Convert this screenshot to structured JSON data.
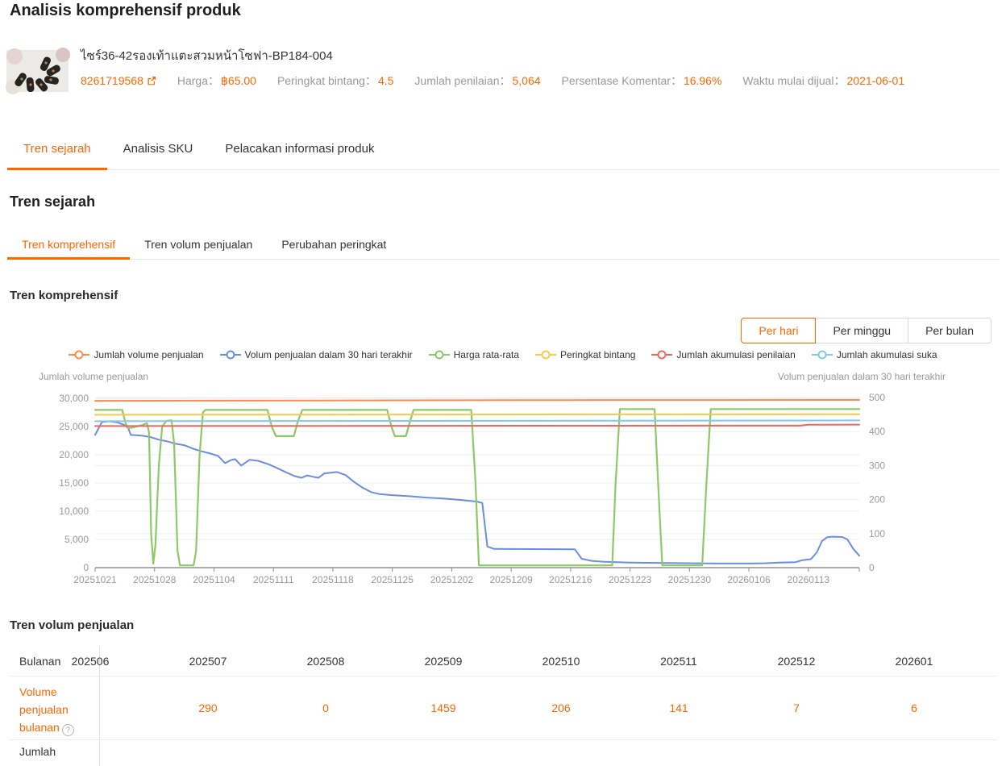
{
  "page_title": "Analisis komprehensif produk",
  "accent_color": "#ff6600",
  "product": {
    "name": "ไซร์36-42รองเท้าแตะสวมหน้าโซฟา-BP184-004",
    "id": "8261719568",
    "fields": [
      {
        "label": "Harga：",
        "value": "฿65.00"
      },
      {
        "label": "Peringkat bintang：",
        "value": "4.5"
      },
      {
        "label": "Jumlah penilaian：",
        "value": "5,064"
      },
      {
        "label": "Persentase Komentar：",
        "value": "16.96%"
      },
      {
        "label": "Waktu mulai dijual：",
        "value": "2021-06-01"
      }
    ]
  },
  "main_tabs": {
    "active_index": 0,
    "items": [
      "Tren sejarah",
      "Analisis SKU",
      "Pelacakan informasi produk"
    ]
  },
  "history_section_title": "Tren sejarah",
  "sub_tabs": {
    "active_index": 0,
    "items": [
      "Tren komprehensif",
      "Tren volum penjualan",
      "Perubahan peringkat"
    ]
  },
  "comprehensive_trend": {
    "title": "Tren komprehensif",
    "period_buttons": {
      "active_index": 0,
      "items": [
        "Per hari",
        "Per minggu",
        "Per bulan"
      ]
    }
  },
  "chart_data": {
    "type": "line",
    "grid": true,
    "legend_position": "top-center",
    "x_axis": {
      "days_total": 90,
      "tick_interval_days": 7,
      "tick_labels": [
        "20251021",
        "20251028",
        "20251104",
        "20251111",
        "20251118",
        "20251125",
        "20251202",
        "20251209",
        "20251216",
        "20251223",
        "20251230",
        "20260106",
        "20260113"
      ]
    },
    "left_axis": {
      "title": "Jumlah volume penjualan",
      "min": 0,
      "max": 30000,
      "tick_step": 5000,
      "tick_labels": [
        "0",
        "5,000",
        "10,000",
        "15,000",
        "20,000",
        "25,000",
        "30,000"
      ]
    },
    "right_axis": {
      "title": "Volum penjualan dalam 30 hari terakhir",
      "min": 0,
      "max": 500,
      "tick_step": 100,
      "tick_labels": [
        "0",
        "100",
        "200",
        "300",
        "400",
        "500"
      ]
    },
    "series": [
      {
        "name": "Jumlah volume penjualan",
        "color": "#fa8c50",
        "axis": "left",
        "width": 2,
        "points_day_value": [
          [
            0,
            29560
          ],
          [
            25,
            29620
          ],
          [
            55,
            29680
          ],
          [
            90,
            29720
          ]
        ]
      },
      {
        "name": "Volum penjualan dalam 30 hari terakhir",
        "color": "#6b8de3",
        "axis": "right",
        "width": 2,
        "points_day_value": [
          [
            0,
            390
          ],
          [
            0.8,
            428
          ],
          [
            1.6,
            430
          ],
          [
            2.6,
            427
          ],
          [
            3.4,
            420
          ],
          [
            3.9,
            410
          ],
          [
            4.2,
            390
          ],
          [
            5.5,
            388
          ],
          [
            6.5,
            384
          ],
          [
            7.5,
            376
          ],
          [
            8.5,
            371
          ],
          [
            9.5,
            364
          ],
          [
            10.5,
            360
          ],
          [
            11.5,
            350
          ],
          [
            12.5,
            342
          ],
          [
            13.5,
            336
          ],
          [
            14.5,
            328
          ],
          [
            15.3,
            307
          ],
          [
            16,
            316
          ],
          [
            16.5,
            319
          ],
          [
            17.2,
            300
          ],
          [
            18.2,
            317
          ],
          [
            19.2,
            314
          ],
          [
            20.5,
            303
          ],
          [
            21.5,
            292
          ],
          [
            22.5,
            280
          ],
          [
            23.5,
            269
          ],
          [
            24.3,
            264
          ],
          [
            25,
            271
          ],
          [
            25.7,
            267
          ],
          [
            26.3,
            264
          ],
          [
            27,
            277
          ],
          [
            28.5,
            281
          ],
          [
            29.5,
            272
          ],
          [
            30.5,
            252
          ],
          [
            31.5,
            235
          ],
          [
            32.5,
            222
          ],
          [
            33.5,
            216
          ],
          [
            35,
            213
          ],
          [
            37,
            210
          ],
          [
            39,
            206
          ],
          [
            41,
            203
          ],
          [
            43,
            199
          ],
          [
            45,
            194
          ],
          [
            45.6,
            190
          ],
          [
            46.2,
            62
          ],
          [
            47,
            55
          ],
          [
            56.5,
            54
          ],
          [
            57.3,
            26
          ],
          [
            58.5,
            20
          ],
          [
            60,
            17
          ],
          [
            63,
            15
          ],
          [
            66,
            14
          ],
          [
            70,
            13
          ],
          [
            74,
            12
          ],
          [
            77,
            12
          ],
          [
            79,
            13
          ],
          [
            80.5,
            15
          ],
          [
            82.5,
            16
          ],
          [
            83.3,
            22
          ],
          [
            84.3,
            25
          ],
          [
            85,
            45
          ],
          [
            85.6,
            78
          ],
          [
            86.2,
            89
          ],
          [
            86.8,
            91
          ],
          [
            88,
            90
          ],
          [
            88.6,
            83
          ],
          [
            89.3,
            55
          ],
          [
            90,
            35
          ]
        ]
      },
      {
        "name": "Harga rata-rata",
        "color": "#8fc866",
        "axis": "left",
        "width": 2.2,
        "points_day_value": [
          [
            0,
            27950
          ],
          [
            3.2,
            27950
          ],
          [
            3.6,
            25500
          ],
          [
            3.9,
            24700
          ],
          [
            4.6,
            24900
          ],
          [
            5.6,
            25300
          ],
          [
            6.1,
            25600
          ],
          [
            6.35,
            24000
          ],
          [
            6.6,
            6000
          ],
          [
            6.85,
            700
          ],
          [
            7.1,
            4000
          ],
          [
            7.5,
            18000
          ],
          [
            7.9,
            25000
          ],
          [
            8.4,
            26000
          ],
          [
            9,
            26100
          ],
          [
            9.3,
            22000
          ],
          [
            9.7,
            3000
          ],
          [
            10,
            400
          ],
          [
            11.6,
            400
          ],
          [
            11.9,
            3000
          ],
          [
            12.3,
            20000
          ],
          [
            12.7,
            27500
          ],
          [
            13,
            27950
          ],
          [
            20.3,
            27950
          ],
          [
            20.8,
            25000
          ],
          [
            21.3,
            23300
          ],
          [
            23.4,
            23300
          ],
          [
            23.9,
            26000
          ],
          [
            24.4,
            27950
          ],
          [
            34.4,
            27950
          ],
          [
            34.9,
            25000
          ],
          [
            35.3,
            23300
          ],
          [
            36.6,
            23300
          ],
          [
            37.1,
            26000
          ],
          [
            37.5,
            27950
          ],
          [
            44.3,
            27950
          ],
          [
            44.8,
            15000
          ],
          [
            45.2,
            400
          ],
          [
            60.9,
            400
          ],
          [
            61.3,
            15000
          ],
          [
            61.8,
            28100
          ],
          [
            65.9,
            28100
          ],
          [
            66.3,
            15000
          ],
          [
            66.8,
            400
          ],
          [
            71.5,
            400
          ],
          [
            72,
            15000
          ],
          [
            72.5,
            28100
          ],
          [
            90,
            28100
          ]
        ]
      },
      {
        "name": "Peringkat bintang",
        "color": "#f6c94e",
        "axis": "left",
        "width": 2,
        "points_day_value": [
          [
            0,
            27080
          ],
          [
            90,
            27180
          ]
        ]
      },
      {
        "name": "Jumlah akumulasi penilaian",
        "color": "#e96862",
        "axis": "left",
        "width": 2,
        "points_day_value": [
          [
            0,
            25080
          ],
          [
            70,
            25160
          ],
          [
            83,
            25160
          ],
          [
            84,
            25320
          ],
          [
            90,
            25340
          ]
        ]
      },
      {
        "name": "Jumlah akumulasi suka",
        "color": "#85c8e8",
        "axis": "left",
        "width": 2,
        "points_day_value": [
          [
            0,
            25940
          ],
          [
            90,
            26080
          ]
        ]
      }
    ]
  },
  "sales_table": {
    "title": "Tren volum penjualan",
    "corner_label": "Bulanan",
    "months": [
      "202506",
      "202507",
      "202508",
      "202509",
      "202510",
      "202511",
      "202512",
      "202601"
    ],
    "rows": [
      {
        "label": "Volume penjualan bulanan",
        "help_icon": true,
        "values": [
          "",
          "290",
          "0",
          "1459",
          "206",
          "141",
          "7",
          "6"
        ]
      },
      {
        "label": "Jumlah",
        "help_icon": false,
        "values": [
          "",
          "",
          "",
          "",
          "",
          "",
          "",
          ""
        ]
      }
    ]
  },
  "icons": {
    "help_glyph": "?"
  }
}
